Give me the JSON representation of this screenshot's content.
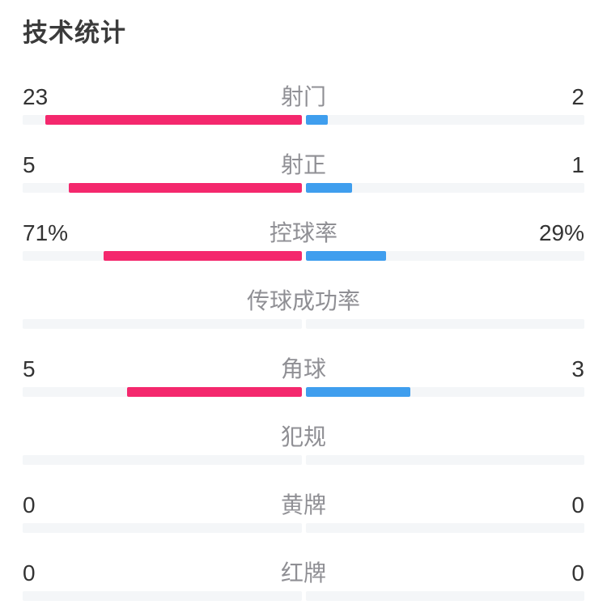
{
  "page": {
    "title": "技术统计"
  },
  "colors": {
    "home_bar": "#f4286d",
    "away_bar": "#3f9eee",
    "track": "#f4f6f8",
    "title_text": "#3b3b3b",
    "value_text": "#333333",
    "label_text": "#8f8f94"
  },
  "chart_data": {
    "type": "bar",
    "title": "技术统计",
    "orientation": "horizontal-duel",
    "legend_position": "none",
    "grid": false,
    "categories": [
      "射门",
      "射正",
      "控球率",
      "传球成功率",
      "角球",
      "犯规",
      "黄牌",
      "红牌"
    ],
    "series": [
      {
        "name": "home",
        "color": "#f4286d",
        "values": [
          "23",
          "5",
          "71%",
          "",
          "5",
          "",
          "0",
          "0"
        ]
      },
      {
        "name": "away",
        "color": "#3f9eee",
        "values": [
          "2",
          "1",
          "29%",
          "",
          "3",
          "",
          "0",
          "0"
        ]
      }
    ],
    "rows": [
      {
        "label": "射门",
        "left": "23",
        "right": "2",
        "left_num": 23,
        "right_num": 2,
        "show_bar": true
      },
      {
        "label": "射正",
        "left": "5",
        "right": "1",
        "left_num": 5,
        "right_num": 1,
        "show_bar": true
      },
      {
        "label": "控球率",
        "left": "71%",
        "right": "29%",
        "left_num": 71,
        "right_num": 29,
        "show_bar": true
      },
      {
        "label": "传球成功率",
        "left": "",
        "right": "",
        "left_num": 0,
        "right_num": 0,
        "show_bar": false
      },
      {
        "label": "角球",
        "left": "5",
        "right": "3",
        "left_num": 5,
        "right_num": 3,
        "show_bar": true
      },
      {
        "label": "犯规",
        "left": "",
        "right": "",
        "left_num": 0,
        "right_num": 0,
        "show_bar": false
      },
      {
        "label": "黄牌",
        "left": "0",
        "right": "0",
        "left_num": 0,
        "right_num": 0,
        "show_bar": false
      },
      {
        "label": "红牌",
        "left": "0",
        "right": "0",
        "left_num": 0,
        "right_num": 0,
        "show_bar": false
      }
    ]
  }
}
